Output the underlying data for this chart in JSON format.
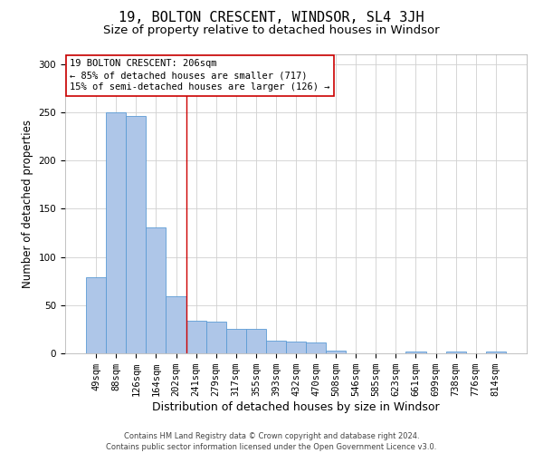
{
  "title": "19, BOLTON CRESCENT, WINDSOR, SL4 3JH",
  "subtitle": "Size of property relative to detached houses in Windsor",
  "xlabel": "Distribution of detached houses by size in Windsor",
  "ylabel": "Number of detached properties",
  "footer_line1": "Contains HM Land Registry data © Crown copyright and database right 2024.",
  "footer_line2": "Contains public sector information licensed under the Open Government Licence v3.0.",
  "categories": [
    "49sqm",
    "88sqm",
    "126sqm",
    "164sqm",
    "202sqm",
    "241sqm",
    "279sqm",
    "317sqm",
    "355sqm",
    "393sqm",
    "432sqm",
    "470sqm",
    "508sqm",
    "546sqm",
    "585sqm",
    "623sqm",
    "661sqm",
    "699sqm",
    "738sqm",
    "776sqm",
    "814sqm"
  ],
  "values": [
    79,
    250,
    246,
    131,
    59,
    34,
    33,
    25,
    25,
    13,
    12,
    11,
    3,
    0,
    0,
    0,
    2,
    0,
    2,
    0,
    2
  ],
  "bar_color": "#aec6e8",
  "bar_edge_color": "#5b9bd5",
  "annotation_line1": "19 BOLTON CRESCENT: 206sqm",
  "annotation_line2": "← 85% of detached houses are smaller (717)",
  "annotation_line3": "15% of semi-detached houses are larger (126) →",
  "annotation_box_color": "#ffffff",
  "annotation_box_edge_color": "#cc0000",
  "vline_x_index": 4.5,
  "vline_color": "#cc0000",
  "ylim": [
    0,
    310
  ],
  "yticks": [
    0,
    50,
    100,
    150,
    200,
    250,
    300
  ],
  "grid_color": "#d0d0d0",
  "background_color": "#ffffff",
  "title_fontsize": 11,
  "subtitle_fontsize": 9.5,
  "tick_fontsize": 7.5,
  "ylabel_fontsize": 8.5,
  "xlabel_fontsize": 9,
  "annotation_fontsize": 7.5,
  "footer_fontsize": 6,
  "footer_color": "#444444"
}
